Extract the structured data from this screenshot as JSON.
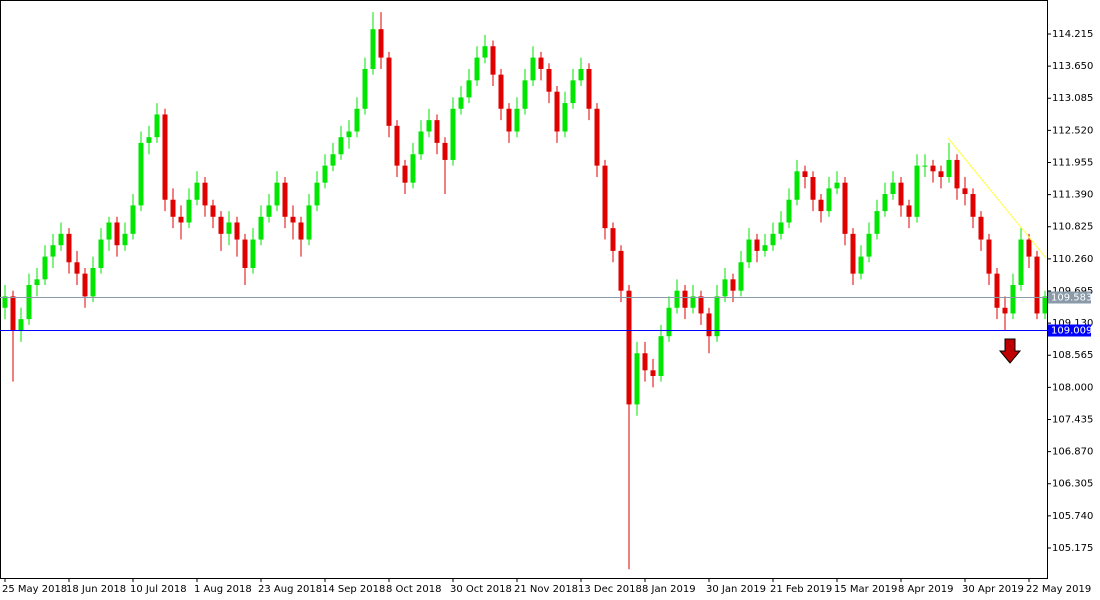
{
  "chart_data": {
    "type": "candlestick",
    "up_color": "#00e600",
    "down_color": "#e00000",
    "xlim": [
      -0.625,
      130.25
    ],
    "ylim": [
      104.647,
      114.813
    ],
    "xticks": [
      {
        "value": 0,
        "label": "25 May 2018"
      },
      {
        "value": 8,
        "label": "18 Jun 2018"
      },
      {
        "value": 16,
        "label": "10 Jul 2018"
      },
      {
        "value": 24,
        "label": "1 Aug 2018"
      },
      {
        "value": 32,
        "label": "23 Aug 2018"
      },
      {
        "value": 40,
        "label": "14 Sep 2018"
      },
      {
        "value": 48,
        "label": "8 Oct 2018"
      },
      {
        "value": 56,
        "label": "30 Oct 2018"
      },
      {
        "value": 64,
        "label": "21 Nov 2018"
      },
      {
        "value": 72,
        "label": "13 Dec 2018"
      },
      {
        "value": 80,
        "label": "8 Jan 2019"
      },
      {
        "value": 88,
        "label": "30 Jan 2019"
      },
      {
        "value": 96,
        "label": "21 Feb 2019"
      },
      {
        "value": 104,
        "label": "15 Mar 2019"
      },
      {
        "value": 112,
        "label": "8 Apr 2019"
      },
      {
        "value": 120,
        "label": "30 Apr 2019"
      },
      {
        "value": 128,
        "label": "22 May 2019"
      }
    ],
    "yticks": [
      {
        "value": 105.175,
        "label": "105.175"
      },
      {
        "value": 105.74,
        "label": "105.740"
      },
      {
        "value": 106.305,
        "label": "106.305"
      },
      {
        "value": 106.87,
        "label": "106.870"
      },
      {
        "value": 107.435,
        "label": "107.435"
      },
      {
        "value": 108,
        "label": "108.000"
      },
      {
        "value": 108.565,
        "label": "108.565"
      },
      {
        "value": 109.13,
        "label": "109.130"
      },
      {
        "value": 109.695,
        "label": "109.695"
      },
      {
        "value": 110.26,
        "label": "110.260"
      },
      {
        "value": 110.825,
        "label": "110.825"
      },
      {
        "value": 111.39,
        "label": "111.390"
      },
      {
        "value": 111.955,
        "label": "111.955"
      },
      {
        "value": 112.52,
        "label": "112.520"
      },
      {
        "value": 113.085,
        "label": "113.085"
      },
      {
        "value": 113.65,
        "label": "113.650"
      },
      {
        "value": 114.215,
        "label": "114.215"
      }
    ],
    "hlines": [
      {
        "value": 109.583,
        "color": "#8a9aa8"
      },
      {
        "value": 109.009,
        "color": "#0000ff"
      }
    ],
    "ohlc": [
      [
        109.4,
        109.8,
        109.2,
        109.6
      ],
      [
        109.6,
        109.7,
        108.1,
        109.0
      ],
      [
        109.0,
        109.4,
        108.8,
        109.2
      ],
      [
        109.2,
        110.0,
        109.1,
        109.8
      ],
      [
        109.8,
        110.1,
        109.6,
        109.9
      ],
      [
        109.9,
        110.5,
        109.8,
        110.3
      ],
      [
        110.3,
        110.7,
        110.1,
        110.5
      ],
      [
        110.5,
        110.9,
        110.4,
        110.7
      ],
      [
        110.7,
        110.8,
        110.0,
        110.2
      ],
      [
        110.2,
        110.4,
        109.8,
        110.0
      ],
      [
        110.0,
        110.1,
        109.4,
        109.6
      ],
      [
        109.6,
        110.3,
        109.5,
        110.1
      ],
      [
        110.1,
        110.8,
        110.0,
        110.6
      ],
      [
        110.6,
        111.0,
        110.4,
        110.9
      ],
      [
        110.9,
        111.0,
        110.3,
        110.5
      ],
      [
        110.5,
        110.9,
        110.4,
        110.7
      ],
      [
        110.7,
        111.4,
        110.6,
        111.2
      ],
      [
        111.2,
        112.5,
        111.1,
        112.3
      ],
      [
        112.3,
        112.6,
        112.1,
        112.4
      ],
      [
        112.4,
        113.0,
        112.3,
        112.8
      ],
      [
        112.8,
        112.9,
        111.1,
        111.3
      ],
      [
        111.3,
        111.5,
        110.8,
        111.0
      ],
      [
        111.0,
        111.2,
        110.6,
        110.9
      ],
      [
        110.9,
        111.5,
        110.8,
        111.3
      ],
      [
        111.3,
        111.8,
        111.2,
        111.6
      ],
      [
        111.6,
        111.7,
        111.0,
        111.2
      ],
      [
        111.2,
        111.3,
        110.8,
        111.0
      ],
      [
        111.0,
        111.1,
        110.4,
        110.7
      ],
      [
        110.7,
        111.1,
        110.5,
        110.9
      ],
      [
        110.9,
        111.0,
        110.3,
        110.6
      ],
      [
        110.6,
        110.7,
        109.8,
        110.1
      ],
      [
        110.1,
        110.8,
        110.0,
        110.6
      ],
      [
        110.6,
        111.2,
        110.5,
        111.0
      ],
      [
        111.0,
        111.4,
        110.9,
        111.2
      ],
      [
        111.2,
        111.8,
        111.1,
        111.6
      ],
      [
        111.6,
        111.7,
        110.8,
        111.0
      ],
      [
        111.0,
        111.2,
        110.6,
        110.9
      ],
      [
        110.9,
        111.0,
        110.3,
        110.6
      ],
      [
        110.6,
        111.4,
        110.5,
        111.2
      ],
      [
        111.2,
        111.8,
        111.1,
        111.6
      ],
      [
        111.6,
        112.1,
        111.5,
        111.9
      ],
      [
        111.9,
        112.3,
        111.8,
        112.1
      ],
      [
        112.1,
        112.6,
        112.0,
        112.4
      ],
      [
        112.4,
        112.7,
        112.2,
        112.5
      ],
      [
        112.5,
        113.1,
        112.4,
        112.9
      ],
      [
        112.9,
        113.8,
        112.8,
        113.6
      ],
      [
        113.6,
        114.6,
        113.5,
        114.3
      ],
      [
        114.3,
        114.6,
        113.6,
        113.8
      ],
      [
        113.8,
        113.9,
        112.4,
        112.6
      ],
      [
        112.6,
        112.7,
        111.7,
        111.9
      ],
      [
        111.9,
        112.0,
        111.4,
        111.6
      ],
      [
        111.6,
        112.3,
        111.5,
        112.1
      ],
      [
        112.1,
        112.7,
        112.0,
        112.5
      ],
      [
        112.5,
        112.9,
        112.4,
        112.7
      ],
      [
        112.7,
        112.8,
        112.1,
        112.3
      ],
      [
        112.3,
        112.4,
        111.4,
        112.0
      ],
      [
        112.0,
        113.1,
        111.9,
        112.9
      ],
      [
        112.9,
        113.3,
        112.8,
        113.1
      ],
      [
        113.1,
        113.6,
        113.0,
        113.4
      ],
      [
        113.4,
        114.0,
        113.3,
        113.8
      ],
      [
        113.8,
        114.2,
        113.7,
        114.0
      ],
      [
        114.0,
        114.1,
        113.3,
        113.5
      ],
      [
        113.5,
        113.6,
        112.7,
        112.9
      ],
      [
        112.9,
        113.0,
        112.3,
        112.5
      ],
      [
        112.5,
        113.1,
        112.4,
        112.9
      ],
      [
        112.9,
        113.6,
        112.8,
        113.4
      ],
      [
        113.4,
        114.0,
        113.3,
        113.8
      ],
      [
        113.8,
        113.9,
        113.4,
        113.6
      ],
      [
        113.6,
        113.7,
        113.0,
        113.2
      ],
      [
        113.2,
        113.3,
        112.3,
        112.5
      ],
      [
        112.5,
        113.2,
        112.4,
        113.0
      ],
      [
        113.0,
        113.6,
        112.9,
        113.4
      ],
      [
        113.4,
        113.8,
        113.3,
        113.6
      ],
      [
        113.6,
        113.7,
        112.7,
        112.9
      ],
      [
        112.9,
        113.0,
        111.7,
        111.9
      ],
      [
        111.9,
        112.0,
        110.6,
        110.8
      ],
      [
        110.8,
        110.9,
        110.2,
        110.4
      ],
      [
        110.4,
        110.5,
        109.5,
        109.7
      ],
      [
        109.7,
        109.8,
        104.8,
        107.7
      ],
      [
        107.7,
        108.8,
        107.5,
        108.6
      ],
      [
        108.6,
        108.8,
        108.1,
        108.3
      ],
      [
        108.3,
        108.5,
        108.0,
        108.2
      ],
      [
        108.2,
        109.1,
        108.1,
        108.9
      ],
      [
        108.9,
        109.6,
        108.8,
        109.4
      ],
      [
        109.4,
        109.9,
        109.3,
        109.7
      ],
      [
        109.7,
        109.8,
        109.2,
        109.4
      ],
      [
        109.4,
        109.8,
        109.3,
        109.6
      ],
      [
        109.6,
        109.7,
        109.1,
        109.3
      ],
      [
        109.3,
        109.4,
        108.6,
        108.9
      ],
      [
        108.9,
        109.8,
        108.8,
        109.6
      ],
      [
        109.6,
        110.1,
        109.5,
        109.9
      ],
      [
        109.9,
        110.0,
        109.5,
        109.7
      ],
      [
        109.7,
        110.4,
        109.6,
        110.2
      ],
      [
        110.2,
        110.8,
        110.1,
        110.6
      ],
      [
        110.6,
        110.7,
        110.2,
        110.4
      ],
      [
        110.4,
        110.7,
        110.3,
        110.5
      ],
      [
        110.5,
        110.9,
        110.4,
        110.7
      ],
      [
        110.7,
        111.1,
        110.6,
        110.9
      ],
      [
        110.9,
        111.5,
        110.8,
        111.3
      ],
      [
        111.3,
        112.0,
        111.2,
        111.8
      ],
      [
        111.8,
        111.9,
        111.5,
        111.7
      ],
      [
        111.7,
        111.8,
        111.1,
        111.3
      ],
      [
        111.3,
        111.4,
        110.9,
        111.1
      ],
      [
        111.1,
        111.7,
        111.0,
        111.5
      ],
      [
        111.5,
        111.8,
        111.4,
        111.6
      ],
      [
        111.6,
        111.7,
        110.5,
        110.7
      ],
      [
        110.7,
        110.8,
        109.8,
        110.0
      ],
      [
        110.0,
        110.5,
        109.9,
        110.3
      ],
      [
        110.3,
        110.9,
        110.2,
        110.7
      ],
      [
        110.7,
        111.3,
        110.6,
        111.1
      ],
      [
        111.1,
        111.6,
        111.0,
        111.4
      ],
      [
        111.4,
        111.8,
        111.3,
        111.6
      ],
      [
        111.6,
        111.7,
        111.0,
        111.2
      ],
      [
        111.2,
        111.3,
        110.8,
        111.0
      ],
      [
        111.0,
        112.1,
        110.9,
        111.9
      ],
      [
        111.9,
        112.1,
        111.7,
        111.9
      ],
      [
        111.9,
        112.0,
        111.6,
        111.8
      ],
      [
        111.8,
        111.9,
        111.5,
        111.7
      ],
      [
        111.7,
        112.3,
        111.6,
        112.0
      ],
      [
        112.0,
        112.1,
        111.3,
        111.5
      ],
      [
        111.5,
        111.7,
        111.2,
        111.4
      ],
      [
        111.4,
        111.5,
        110.8,
        111.0
      ],
      [
        111.0,
        111.1,
        110.4,
        110.6
      ],
      [
        110.6,
        110.7,
        109.8,
        110.0
      ],
      [
        110.0,
        110.1,
        109.2,
        109.4
      ],
      [
        109.4,
        109.6,
        109.0,
        109.3
      ],
      [
        109.3,
        110.0,
        109.2,
        109.8
      ],
      [
        109.8,
        110.8,
        109.7,
        110.6
      ],
      [
        110.6,
        110.7,
        110.1,
        110.3
      ],
      [
        110.3,
        110.4,
        109.2,
        109.3
      ],
      [
        109.3,
        109.7,
        109.2,
        109.6
      ]
    ]
  }
}
